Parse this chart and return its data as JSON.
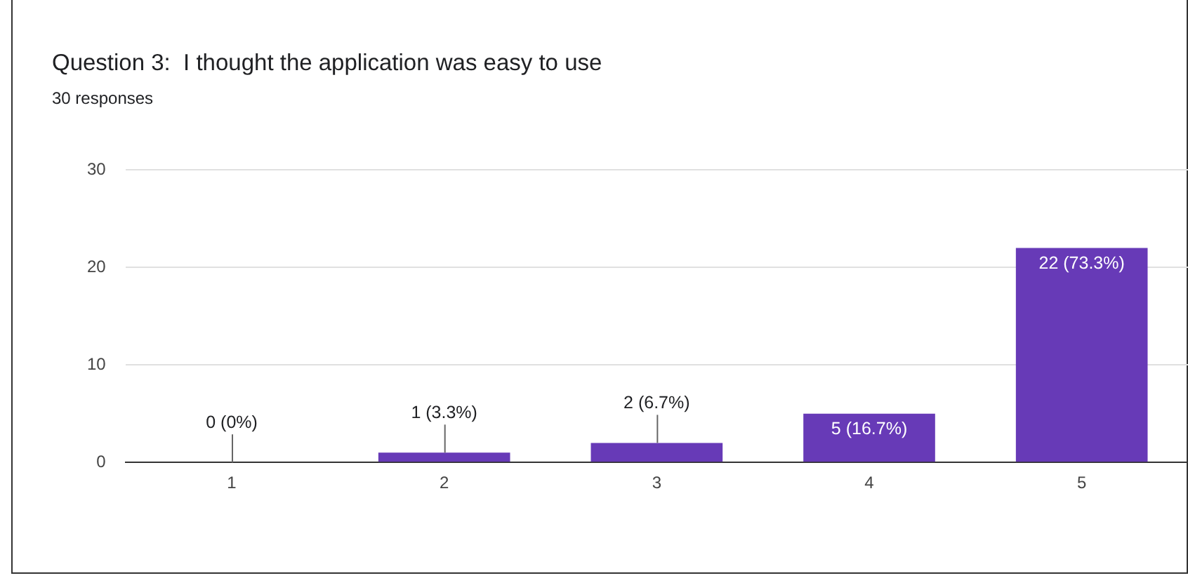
{
  "chart_data": {
    "type": "bar",
    "title": "Question 3:  I thought the application was easy to use",
    "subtitle": "30 responses",
    "categories": [
      "1",
      "2",
      "3",
      "4",
      "5"
    ],
    "values": [
      0,
      1,
      2,
      5,
      22
    ],
    "value_labels": [
      "0 (0%)",
      "1 (3.3%)",
      "2 (6.7%)",
      "5 (16.7%)",
      "22 (73.3%)"
    ],
    "color": "#673ab7",
    "ylim": [
      0,
      30
    ],
    "yticks": [
      0,
      10,
      20,
      30
    ],
    "grid": "y",
    "legend": false
  }
}
